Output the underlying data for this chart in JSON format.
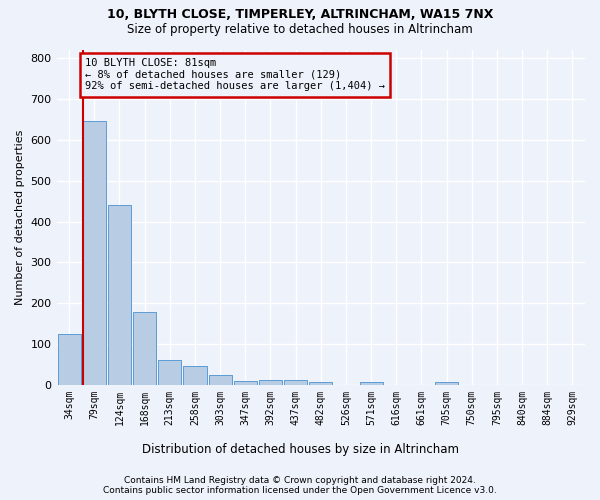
{
  "title1": "10, BLYTH CLOSE, TIMPERLEY, ALTRINCHAM, WA15 7NX",
  "title2": "Size of property relative to detached houses in Altrincham",
  "xlabel": "Distribution of detached houses by size in Altrincham",
  "ylabel": "Number of detached properties",
  "categories": [
    "34sqm",
    "79sqm",
    "124sqm",
    "168sqm",
    "213sqm",
    "258sqm",
    "303sqm",
    "347sqm",
    "392sqm",
    "437sqm",
    "482sqm",
    "526sqm",
    "571sqm",
    "616sqm",
    "661sqm",
    "705sqm",
    "750sqm",
    "795sqm",
    "840sqm",
    "884sqm",
    "929sqm"
  ],
  "values": [
    125,
    645,
    440,
    178,
    60,
    46,
    24,
    10,
    13,
    12,
    7,
    0,
    7,
    0,
    0,
    7,
    0,
    0,
    0,
    0,
    0
  ],
  "bar_color": "#b8cce4",
  "bar_edge_color": "#5b9bd5",
  "annotation_box_color": "#cc0000",
  "annotation_line1": "10 BLYTH CLOSE: 81sqm",
  "annotation_line2": "← 8% of detached houses are smaller (129)",
  "annotation_line3": "92% of semi-detached houses are larger (1,404) →",
  "vline_bar_index": 1,
  "ylim": [
    0,
    820
  ],
  "yticks": [
    0,
    100,
    200,
    300,
    400,
    500,
    600,
    700,
    800
  ],
  "footer1": "Contains HM Land Registry data © Crown copyright and database right 2024.",
  "footer2": "Contains public sector information licensed under the Open Government Licence v3.0.",
  "background_color": "#eef2fb",
  "grid_color": "#ffffff"
}
